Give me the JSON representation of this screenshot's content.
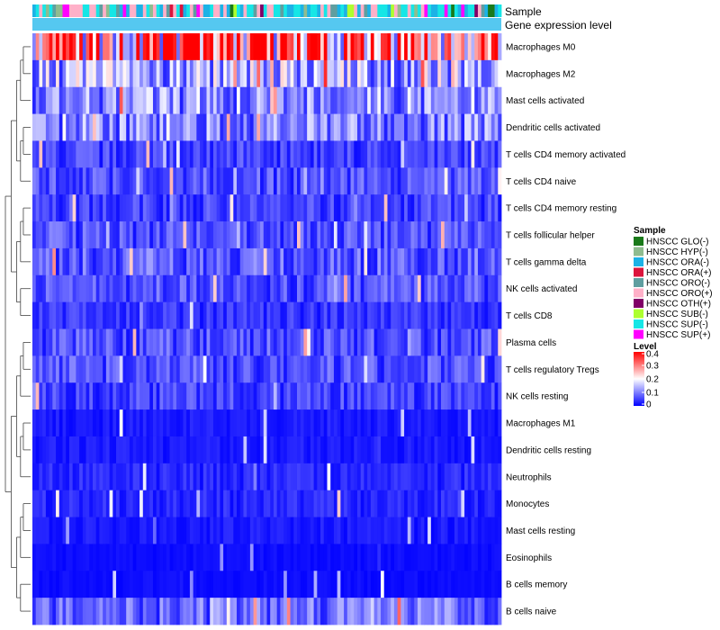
{
  "chart_data": {
    "type": "heatmap",
    "title": "",
    "n_samples": 140,
    "sample_seed": 7,
    "top_tracks": [
      "Sample",
      "Gene expression level"
    ],
    "rows": [
      {
        "name": "Macrophages M0",
        "mean": 0.3
      },
      {
        "name": "Macrophages M2",
        "mean": 0.13
      },
      {
        "name": "Mast cells activated",
        "mean": 0.11
      },
      {
        "name": "Dendritic cells activated",
        "mean": 0.1
      },
      {
        "name": "T cells CD4 memory activated",
        "mean": 0.05
      },
      {
        "name": "T cells CD4 naive",
        "mean": 0.06
      },
      {
        "name": "T cells CD4 memory resting",
        "mean": 0.05
      },
      {
        "name": "T cells follicular helper",
        "mean": 0.06
      },
      {
        "name": "T cells gamma delta",
        "mean": 0.07
      },
      {
        "name": "NK cells activated",
        "mean": 0.06
      },
      {
        "name": "T cells CD8",
        "mean": 0.04
      },
      {
        "name": "Plasma cells",
        "mean": 0.06
      },
      {
        "name": "T cells regulatory  Tregs",
        "mean": 0.06
      },
      {
        "name": "NK cells resting",
        "mean": 0.05
      },
      {
        "name": "Macrophages M1",
        "mean": 0.02
      },
      {
        "name": "Dendritic cells resting",
        "mean": 0.02
      },
      {
        "name": "Neutrophils",
        "mean": 0.03
      },
      {
        "name": "Monocytes",
        "mean": 0.03
      },
      {
        "name": "Mast cells resting",
        "mean": 0.02
      },
      {
        "name": "Eosinophils",
        "mean": 0.01
      },
      {
        "name": "B cells memory",
        "mean": 0.01
      },
      {
        "name": "B cells naive",
        "mean": 0.08
      }
    ],
    "sample_legend": {
      "title": "Sample",
      "categories": [
        {
          "name": "HNSCC GLO(-)",
          "color": "#1a7a1a"
        },
        {
          "name": "HNSCC HYP(-)",
          "color": "#8fbc8f"
        },
        {
          "name": "HNSCC ORA(-)",
          "color": "#1cb2e6"
        },
        {
          "name": "HNSCC ORA(+)",
          "color": "#dc143c"
        },
        {
          "name": "HNSCC ORO(-)",
          "color": "#5f9ea0"
        },
        {
          "name": "HNSCC ORO(+)",
          "color": "#ffb0c8"
        },
        {
          "name": "HNSCC OTH(+)",
          "color": "#800066"
        },
        {
          "name": "HNSCC SUB(-)",
          "color": "#adff2f"
        },
        {
          "name": "HNSCC SUP(-)",
          "color": "#16e6e6"
        },
        {
          "name": "HNSCC SUP(+)",
          "color": "#ff00ff"
        }
      ],
      "weights": [
        0.04,
        0.06,
        0.2,
        0.02,
        0.06,
        0.25,
        0.02,
        0.05,
        0.26,
        0.04
      ]
    },
    "level_legend": {
      "title": "Level",
      "ticks": [
        "0.4",
        "0.3",
        "0.2",
        "0.1",
        "0"
      ],
      "tick_values": [
        0.4,
        0.3,
        0.2,
        0.1,
        0.0
      ],
      "range": [
        0,
        0.4
      ]
    },
    "gene_expression_color": "#55c8f0",
    "colors": {
      "low": "#0000ff",
      "mid": "#ffffff",
      "high": "#ff0000"
    }
  }
}
